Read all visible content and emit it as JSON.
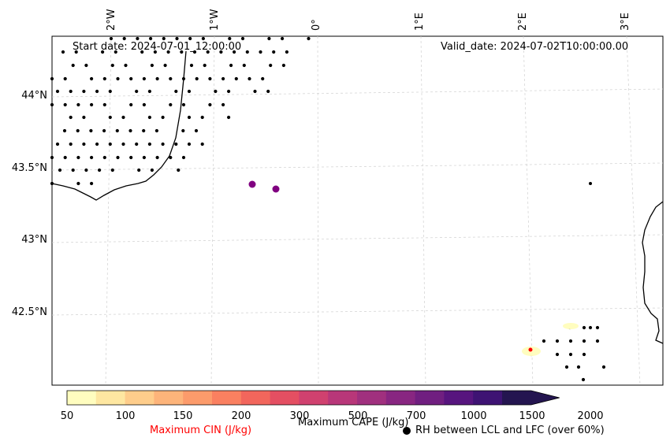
{
  "header": {
    "start_date": "Start date: 2024-07-01_12:00:00",
    "valid_date": "Valid_date: 2024-07-02T10:00:00.00"
  },
  "axes": {
    "lat_labels": [
      "44°N",
      "43.5°N",
      "43°N",
      "42.5°N"
    ],
    "lon_labels": [
      "2°W",
      "1°W",
      "0°",
      "1°E",
      "2°E",
      "3°E"
    ]
  },
  "colorbar": {
    "ticks": [
      "50",
      "100",
      "150",
      "200",
      "300",
      "500",
      "700",
      "1000",
      "1500",
      "2000"
    ],
    "colors": [
      "#fffdbf",
      "#fee7a1",
      "#fecd8b",
      "#fdb47a",
      "#fc9b6b",
      "#fa8060",
      "#f2665c",
      "#e44f62",
      "#d0416f",
      "#b83779",
      "#a0307e",
      "#882681",
      "#701f80",
      "#57157e",
      "#3e1373",
      "#241550"
    ],
    "cape_label": "Maximum CAPE (J/kg)",
    "cin_label": "Maximum CIN (J/kg)",
    "rh_label": "RH between LCL and LFC (over 60%)",
    "cin_color": "#ff0000"
  },
  "markers": {
    "cape_color": "#800080",
    "rh_color": "#000000"
  }
}
